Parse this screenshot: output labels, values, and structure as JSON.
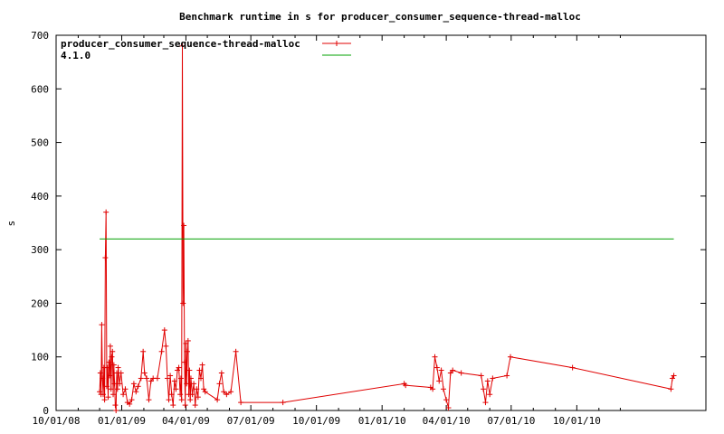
{
  "chart_data": {
    "type": "line",
    "title": "Benchmark runtime in s for producer_consumer_sequence-thread-malloc",
    "xlabel": "",
    "ylabel": "s",
    "x_type": "date",
    "xlim": [
      "2008-10-01",
      "2011-03-31"
    ],
    "ylim": [
      0,
      700
    ],
    "x_ticks": [
      {
        "date": "2008-10-01",
        "label": "10/01/08"
      },
      {
        "date": "2009-01-01",
        "label": "01/01/09"
      },
      {
        "date": "2009-04-01",
        "label": "04/01/09"
      },
      {
        "date": "2009-07-01",
        "label": "07/01/09"
      },
      {
        "date": "2009-10-01",
        "label": "10/01/09"
      },
      {
        "date": "2010-01-01",
        "label": "01/01/10"
      },
      {
        "date": "2010-04-01",
        "label": "04/01/10"
      },
      {
        "date": "2010-07-01",
        "label": "07/01/10"
      },
      {
        "date": "2010-10-01",
        "label": "10/01/10"
      }
    ],
    "y_ticks": [
      0,
      100,
      200,
      300,
      400,
      500,
      600,
      700
    ],
    "grid": false,
    "legend_position": "top-left",
    "series": [
      {
        "name": "producer_consumer_sequence-thread-malloc",
        "color": "#e00000",
        "marker": "plus",
        "points": [
          [
            "2008-12-01",
            35
          ],
          [
            "2008-12-02",
            70
          ],
          [
            "2008-12-03",
            30
          ],
          [
            "2008-12-04",
            160
          ],
          [
            "2008-12-05",
            60
          ],
          [
            "2008-12-06",
            30
          ],
          [
            "2008-12-07",
            80
          ],
          [
            "2008-12-08",
            20
          ],
          [
            "2008-12-09",
            285
          ],
          [
            "2008-12-10",
            370
          ],
          [
            "2008-12-11",
            45
          ],
          [
            "2008-12-12",
            80
          ],
          [
            "2008-12-13",
            25
          ],
          [
            "2008-12-14",
            90
          ],
          [
            "2008-12-15",
            65
          ],
          [
            "2008-12-16",
            120
          ],
          [
            "2008-12-17",
            40
          ],
          [
            "2008-12-18",
            100
          ],
          [
            "2008-12-19",
            110
          ],
          [
            "2008-12-20",
            30
          ],
          [
            "2008-12-21",
            85
          ],
          [
            "2008-12-22",
            50
          ],
          [
            "2008-12-23",
            10
          ],
          [
            "2008-12-24",
            0
          ],
          [
            "2008-12-25",
            70
          ],
          [
            "2008-12-26",
            40
          ],
          [
            "2008-12-27",
            80
          ],
          [
            "2008-12-29",
            50
          ],
          [
            "2008-12-31",
            70
          ],
          [
            "2009-01-03",
            30
          ],
          [
            "2009-01-06",
            40
          ],
          [
            "2009-01-09",
            15
          ],
          [
            "2009-01-12",
            12
          ],
          [
            "2009-01-15",
            20
          ],
          [
            "2009-01-18",
            50
          ],
          [
            "2009-01-21",
            35
          ],
          [
            "2009-01-24",
            45
          ],
          [
            "2009-01-28",
            60
          ],
          [
            "2009-01-31",
            110
          ],
          [
            "2009-02-02",
            70
          ],
          [
            "2009-02-05",
            60
          ],
          [
            "2009-02-08",
            20
          ],
          [
            "2009-02-11",
            55
          ],
          [
            "2009-02-14",
            60
          ],
          [
            "2009-02-20",
            60
          ],
          [
            "2009-02-26",
            110
          ],
          [
            "2009-03-02",
            150
          ],
          [
            "2009-03-04",
            120
          ],
          [
            "2009-03-06",
            60
          ],
          [
            "2009-03-08",
            20
          ],
          [
            "2009-03-10",
            65
          ],
          [
            "2009-03-12",
            30
          ],
          [
            "2009-03-14",
            10
          ],
          [
            "2009-03-16",
            55
          ],
          [
            "2009-03-18",
            40
          ],
          [
            "2009-03-20",
            75
          ],
          [
            "2009-03-22",
            80
          ],
          [
            "2009-03-24",
            30
          ],
          [
            "2009-03-25",
            60
          ],
          [
            "2009-03-26",
            20
          ],
          [
            "2009-03-27",
            680
          ],
          [
            "2009-03-28",
            200
          ],
          [
            "2009-03-29",
            345
          ],
          [
            "2009-03-30",
            90
          ],
          [
            "2009-03-31",
            10
          ],
          [
            "2009-04-01",
            125
          ],
          [
            "2009-04-02",
            50
          ],
          [
            "2009-04-03",
            110
          ],
          [
            "2009-04-04",
            130
          ],
          [
            "2009-04-05",
            30
          ],
          [
            "2009-04-06",
            75
          ],
          [
            "2009-04-07",
            20
          ],
          [
            "2009-04-08",
            60
          ],
          [
            "2009-04-10",
            30
          ],
          [
            "2009-04-12",
            50
          ],
          [
            "2009-04-14",
            10
          ],
          [
            "2009-04-16",
            40
          ],
          [
            "2009-04-18",
            25
          ],
          [
            "2009-04-20",
            75
          ],
          [
            "2009-04-22",
            60
          ],
          [
            "2009-04-24",
            85
          ],
          [
            "2009-04-26",
            40
          ],
          [
            "2009-04-28",
            35
          ],
          [
            "2009-05-15",
            20
          ],
          [
            "2009-05-18",
            50
          ],
          [
            "2009-05-21",
            70
          ],
          [
            "2009-05-24",
            35
          ],
          [
            "2009-05-28",
            30
          ],
          [
            "2009-06-03",
            35
          ],
          [
            "2009-06-10",
            110
          ],
          [
            "2009-06-17",
            15
          ],
          [
            "2009-08-15",
            15
          ],
          [
            "2010-02-01",
            50
          ],
          [
            "2010-02-03",
            47
          ],
          [
            "2010-03-10",
            43
          ],
          [
            "2010-03-13",
            40
          ],
          [
            "2010-03-16",
            100
          ],
          [
            "2010-03-19",
            80
          ],
          [
            "2010-03-22",
            55
          ],
          [
            "2010-03-25",
            75
          ],
          [
            "2010-03-28",
            40
          ],
          [
            "2010-04-01",
            20
          ],
          [
            "2010-04-04",
            5
          ],
          [
            "2010-04-07",
            70
          ],
          [
            "2010-04-10",
            75
          ],
          [
            "2010-04-22",
            70
          ],
          [
            "2010-05-20",
            65
          ],
          [
            "2010-05-23",
            40
          ],
          [
            "2010-05-26",
            15
          ],
          [
            "2010-05-29",
            55
          ],
          [
            "2010-06-01",
            30
          ],
          [
            "2010-06-05",
            60
          ],
          [
            "2010-06-25",
            65
          ],
          [
            "2010-06-30",
            100
          ],
          [
            "2010-09-25",
            80
          ],
          [
            "2011-02-10",
            40
          ],
          [
            "2011-02-12",
            60
          ],
          [
            "2011-02-14",
            65
          ]
        ]
      },
      {
        "name": "4.1.0",
        "color": "#00a000",
        "marker": "none",
        "points": [
          [
            "2008-12-01",
            320
          ],
          [
            "2011-02-14",
            320
          ]
        ]
      }
    ]
  }
}
